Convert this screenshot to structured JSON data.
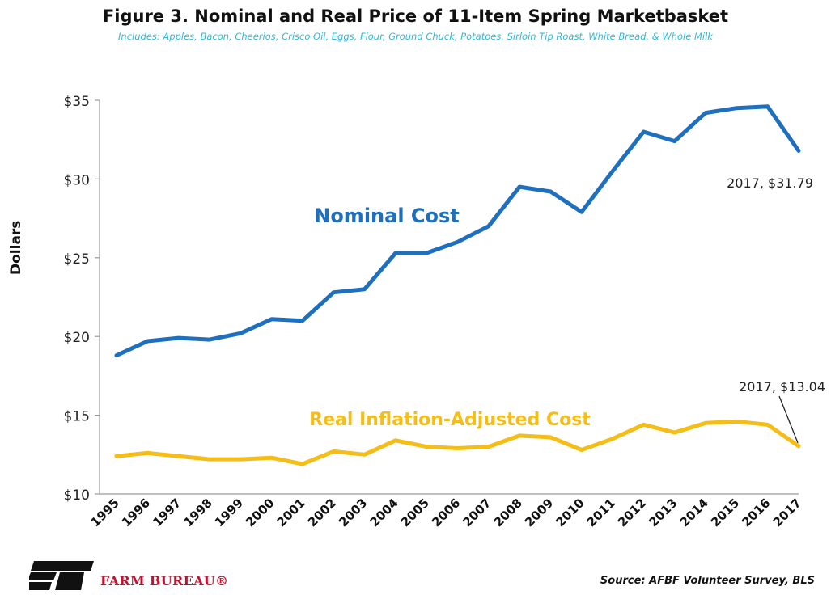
{
  "header": {
    "title": "Figure 3. Nominal and Real Price of 11-Item Spring Marketbasket",
    "subtitle": "Includes: Apples, Bacon, Cheerios, Crisco Oil, Eggs, Flour, Ground Chuck, Potatoes, Sirloin Tip Roast, White Bread, & Whole Milk"
  },
  "footer": {
    "brand": "FARM BUREAU®",
    "source": "Source: AFBF Volunteer Survey, BLS"
  },
  "chart_data": {
    "type": "line",
    "ylabel": "Dollars",
    "xlabel": "",
    "ylim": [
      10,
      35
    ],
    "yticks": [
      10,
      15,
      20,
      25,
      30,
      35
    ],
    "ytick_labels": [
      "$10",
      "$15",
      "$20",
      "$25",
      "$30",
      "$35"
    ],
    "grid": false,
    "x": [
      "1995",
      "1996",
      "1997",
      "1998",
      "1999",
      "2000",
      "2001",
      "2002",
      "2003",
      "2004",
      "2005",
      "2006",
      "2007",
      "2008",
      "2009",
      "2010",
      "2011",
      "2012",
      "2013",
      "2014",
      "2015",
      "2016",
      "2017"
    ],
    "series": [
      {
        "name": "Nominal Cost",
        "color": "#1f6fbf",
        "values": [
          18.8,
          19.7,
          19.9,
          19.8,
          20.2,
          21.1,
          21.0,
          22.8,
          23.0,
          25.3,
          25.3,
          26.0,
          27.0,
          29.5,
          29.2,
          27.9,
          30.5,
          33.0,
          32.4,
          34.2,
          34.5,
          34.6,
          31.79
        ]
      },
      {
        "name": "Real Inflation-Adjusted Cost",
        "color": "#f5bd17",
        "values": [
          12.4,
          12.6,
          12.4,
          12.2,
          12.2,
          12.3,
          11.9,
          12.7,
          12.5,
          13.4,
          13.0,
          12.9,
          13.0,
          13.7,
          13.6,
          12.8,
          13.5,
          14.4,
          13.9,
          14.5,
          14.6,
          14.4,
          13.04
        ]
      }
    ],
    "annotations": [
      {
        "text": "2017, $31.79",
        "series": 0,
        "x": "2017"
      },
      {
        "text": "2017, $13.04",
        "series": 1,
        "x": "2017"
      }
    ]
  }
}
